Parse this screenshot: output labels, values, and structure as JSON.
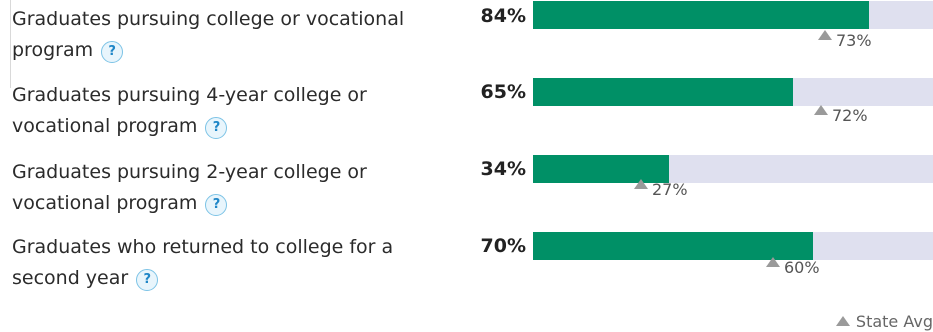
{
  "help_symbol": "?",
  "legend_label": "State Avg",
  "rows": [
    {
      "label": "Graduates pursuing college or vocational program",
      "value_label": "84%",
      "value": 84,
      "state_avg_label": "73%",
      "state_avg": 73
    },
    {
      "label": "Graduates pursuing 4-year college or vocational program",
      "value_label": "65%",
      "value": 65,
      "state_avg_label": "72%",
      "state_avg": 72
    },
    {
      "label": "Graduates pursuing 2-year college or vocational program",
      "value_label": "34%",
      "value": 34,
      "state_avg_label": "27%",
      "state_avg": 27
    },
    {
      "label": "Graduates who returned to college for a second year",
      "value_label": "70%",
      "value": 70,
      "state_avg_label": "60%",
      "state_avg": 60
    }
  ],
  "colors": {
    "bar_fill": "#009066",
    "bar_track": "#dfe0ef",
    "help_icon": "#1f86c7"
  }
}
